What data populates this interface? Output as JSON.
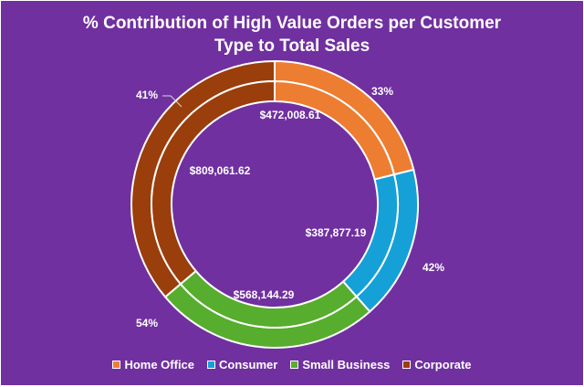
{
  "chart_data": {
    "type": "donut",
    "title_line1": "% Contribution of High Value Orders per Customer",
    "title_line2": "Type to Total Sales",
    "categories": [
      "Home Office",
      "Consumer",
      "Small Business",
      "Corporate"
    ],
    "colors": [
      "#ed7d31",
      "#15a0d8",
      "#57ad2d",
      "#9a3e0c"
    ],
    "background": "#7030a0",
    "inner_ring": {
      "values": [
        472008.61,
        387877.19,
        568144.29,
        809061.62
      ],
      "labels": [
        "$472,008.61",
        "$387,877.19",
        "$568,144.29",
        "$809,061.62"
      ]
    },
    "outer_ring": {
      "values": [
        472008.61,
        387877.19,
        568144.29,
        809061.62
      ],
      "labels": [
        "33%",
        "42%",
        "54%",
        "41%"
      ]
    },
    "legend_position": "bottom"
  }
}
